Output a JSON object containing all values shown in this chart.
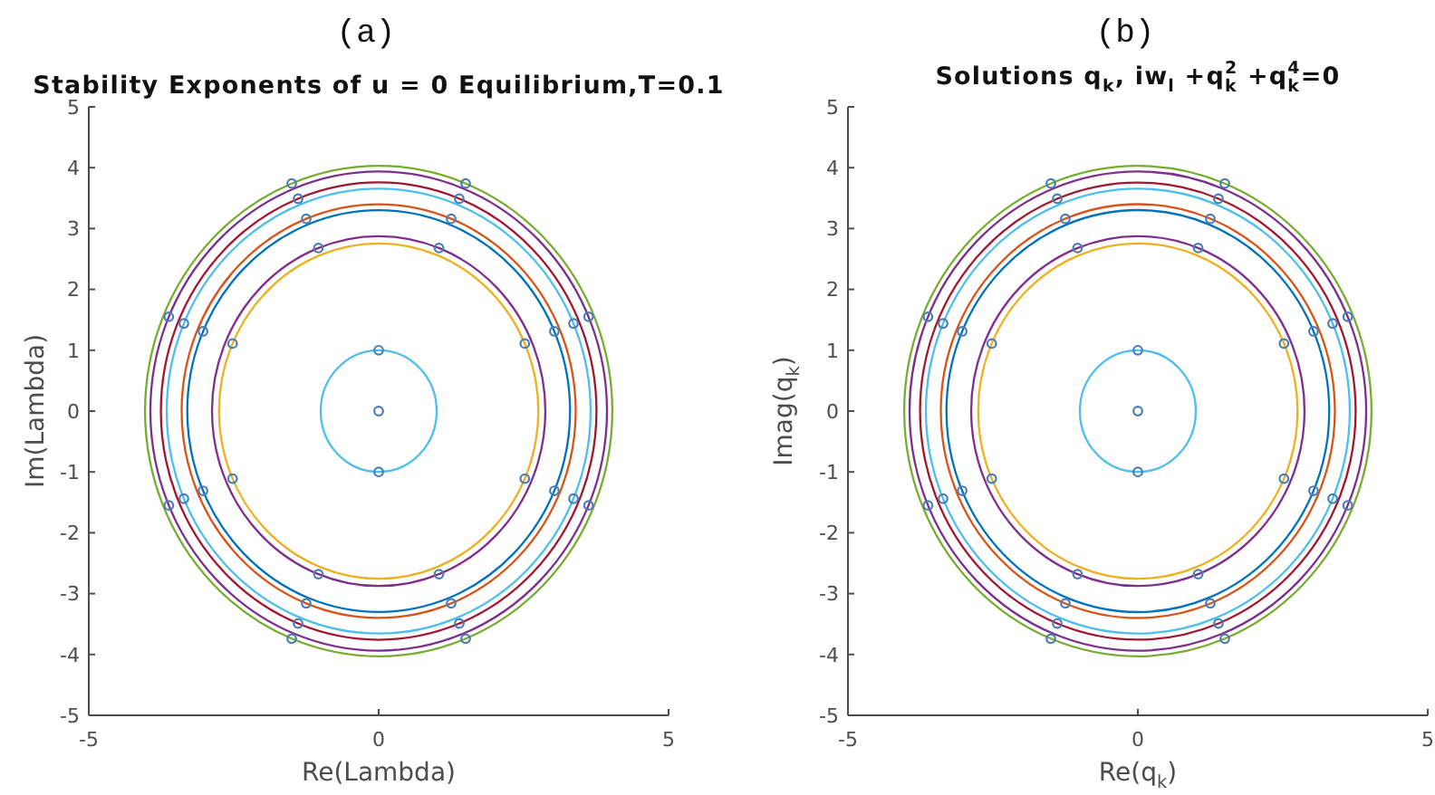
{
  "chart_data": [
    {
      "type": "scatter",
      "title": "Stability Exponents of u = 0 Equilibrium,T=0.1",
      "xlabel": "Re(Lambda)",
      "ylabel": "Im(Lambda)",
      "annotations": [
        "(a)"
      ],
      "xlim": [
        -5,
        5
      ],
      "xticks": [
        -5,
        0,
        5
      ],
      "ylim": [
        -5,
        5
      ],
      "yticks": [
        -5,
        -4,
        -3,
        -2,
        -1,
        0,
        1,
        2,
        3,
        4,
        5
      ],
      "marker": "circle",
      "color": "#4a7db8",
      "x": [
        1.5,
        -1.5,
        1.5,
        -1.5,
        3.62,
        -3.62,
        3.62,
        -3.62,
        1.39,
        -1.39,
        1.39,
        -1.39,
        3.36,
        -3.36,
        3.36,
        -3.36,
        1.25,
        -1.25,
        1.25,
        -1.25,
        3.03,
        -3.03,
        3.03,
        -3.03,
        1.04,
        -1.04,
        1.04,
        -1.04,
        2.52,
        -2.52,
        2.52,
        -2.52,
        0,
        0,
        0
      ],
      "values": [
        3.74,
        3.74,
        -3.74,
        -3.74,
        1.55,
        1.55,
        -1.55,
        -1.55,
        3.49,
        3.49,
        -3.49,
        -3.49,
        1.44,
        1.44,
        -1.44,
        -1.44,
        3.16,
        3.16,
        -3.16,
        -3.16,
        1.31,
        1.31,
        -1.31,
        -1.31,
        2.68,
        2.68,
        -2.68,
        -2.68,
        1.11,
        1.11,
        -1.11,
        -1.11,
        1,
        -1,
        0
      ]
    },
    {
      "type": "scatter",
      "title": "Solutions q$_{k}$, iw$_{l}$ +q$_{k}$$^{2}$ +q$_{k}$$^{4}$=0",
      "xlabel": "Re(q$_{k}$)",
      "ylabel": "Imag(q$_{k}$)",
      "annotations": [
        "(b)"
      ],
      "xlim": [
        -5,
        5
      ],
      "xticks": [
        -5,
        0,
        5
      ],
      "ylim": [
        -5,
        5
      ],
      "yticks": [
        -5,
        -4,
        -3,
        -2,
        -1,
        0,
        1,
        2,
        3,
        4,
        5
      ],
      "marker": "circle",
      "color": "#4a7db8",
      "x": [
        1.5,
        -1.5,
        1.5,
        -1.5,
        3.62,
        -3.62,
        3.62,
        -3.62,
        1.39,
        -1.39,
        1.39,
        -1.39,
        3.36,
        -3.36,
        3.36,
        -3.36,
        1.25,
        -1.25,
        1.25,
        -1.25,
        3.03,
        -3.03,
        3.03,
        -3.03,
        1.04,
        -1.04,
        1.04,
        -1.04,
        2.52,
        -2.52,
        2.52,
        -2.52,
        0,
        0,
        0
      ],
      "values": [
        3.74,
        3.74,
        -3.74,
        -3.74,
        1.55,
        1.55,
        -1.55,
        -1.55,
        3.49,
        3.49,
        -3.49,
        -3.49,
        1.44,
        1.44,
        -1.44,
        -1.44,
        3.16,
        3.16,
        -3.16,
        -3.16,
        1.31,
        1.31,
        -1.31,
        -1.31,
        2.68,
        2.68,
        -2.68,
        -2.68,
        1.11,
        1.11,
        -1.11,
        -1.11,
        1,
        -1,
        0
      ]
    }
  ]
}
